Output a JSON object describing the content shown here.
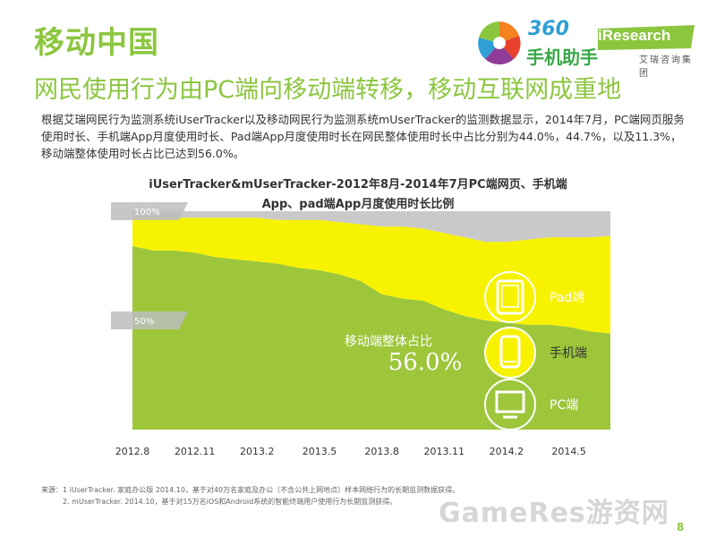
{
  "header": {
    "title": "移动中国",
    "subtitle": "网民使用行为由PC端向移动端转移，移动互联网成重地"
  },
  "logos": {
    "logo_360_number": "360",
    "logo_360_text": "手机助手",
    "iresearch_text": "iResearch",
    "iresearch_sub": "艾瑞咨询集团"
  },
  "intro": {
    "text": "根据艾瑞网民行为监测系统iUserTracker以及移动网民行为监测系统mUserTracker的监测数据显示，2014年7月，PC端网页服务使用时长、手机端App月度使用时长、Pad端App月度使用时长在网民整体使用时长中占比分别为44.0%，44.7%，以及11.3%，移动端整体使用时长占比已达到56.0%。"
  },
  "chart_title": {
    "line1": "iUserTracker&mUserTracker-2012年8月-2014年7月PC端网页、手机端",
    "line2": "App、pad端App月度使用时长比例"
  },
  "colors": {
    "title_green": "#8cc63f",
    "pc_area": "#9dc63b",
    "phone_area": "#f7f200",
    "pad_area": "#c9c9c9",
    "background": "#ffffff"
  },
  "chart_data": {
    "type": "area",
    "stacked": true,
    "x": [
      "2012.8",
      "2012.9",
      "2012.10",
      "2012.11",
      "2012.12",
      "2013.1",
      "2013.2",
      "2013.3",
      "2013.4",
      "2013.5",
      "2013.6",
      "2013.7",
      "2013.8",
      "2013.9",
      "2013.10",
      "2013.11",
      "2013.12",
      "2014.1",
      "2014.2",
      "2014.3",
      "2014.4",
      "2014.5",
      "2014.6",
      "2014.7"
    ],
    "x_tick_labels": [
      "2012.8",
      "2012.11",
      "2013.2",
      "2013.5",
      "2013.8",
      "2013.11",
      "2014.2",
      "2014.5"
    ],
    "series": [
      {
        "name": "PC端",
        "values": [
          84,
          82,
          82,
          81,
          79,
          78,
          77,
          76,
          74,
          73,
          71,
          68,
          62,
          60,
          59,
          55,
          52,
          50,
          49,
          48,
          48,
          47,
          45,
          44
        ]
      },
      {
        "name": "手机端",
        "values": [
          13,
          15,
          15,
          16,
          18,
          19,
          20,
          20,
          22,
          23,
          24,
          26,
          31,
          33,
          33,
          35,
          36,
          36,
          37,
          39,
          40,
          41,
          43,
          44.7
        ]
      },
      {
        "name": "Pad端",
        "values": [
          3,
          3,
          3,
          3,
          3,
          3,
          3,
          4,
          4,
          4,
          5,
          6,
          7,
          7,
          8,
          10,
          12,
          14,
          14,
          13,
          12,
          12,
          12,
          11.3
        ]
      }
    ],
    "y_markers": [
      "100%",
      "50%"
    ],
    "ylim": [
      0,
      100
    ],
    "annotation_label": "移动端整体占比",
    "annotation_value": "56.0%",
    "legend": [
      {
        "label": "Pad端",
        "icon": "tablet-icon"
      },
      {
        "label": "手机端",
        "icon": "phone-icon"
      },
      {
        "label": "PC端",
        "icon": "monitor-icon"
      }
    ],
    "legend_placement": "right",
    "grid": false
  },
  "source": {
    "line1": "来源：1 iUserTracker. 家庭办公版 2014.10，基于对40万名家庭及办公（不含公共上网地点）样本网络行为的长期监测数据获得。",
    "line2": "2. mUserTracker. 2014.10，基于对15万名iOS和Android系统的智能终端用户使用行为长期监测获得。"
  },
  "watermark": "GameRes游资网",
  "page_number": "8"
}
